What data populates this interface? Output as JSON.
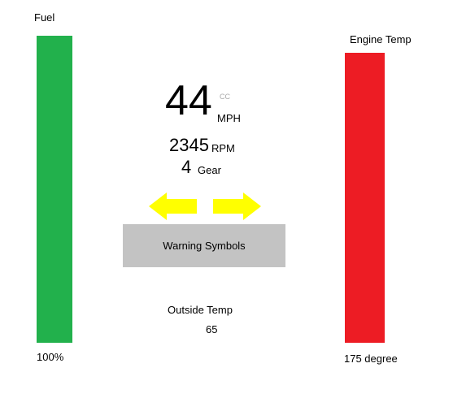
{
  "colors": {
    "fuel_bar": "#22b14c",
    "engine_temp_bar": "#ed1c24",
    "turn_signal": "#ffff00",
    "warning_panel": "#c3c3c3",
    "cruise_label": "#a8a8a8"
  },
  "fuel": {
    "title": "Fuel",
    "value": "100%",
    "level_fraction": 1.0
  },
  "engine_temp": {
    "title": "Engine Temp",
    "value": "175 degree"
  },
  "speed": {
    "value": "44",
    "unit": "MPH",
    "cruise_label": "CC"
  },
  "rpm": {
    "value": "2345",
    "unit": "RPM"
  },
  "gear": {
    "value": "4",
    "label": "Gear"
  },
  "turn_signals": {
    "left_icon": "left-arrow-icon",
    "right_icon": "right-arrow-icon"
  },
  "warning": {
    "label": "Warning Symbols"
  },
  "outside_temp": {
    "label": "Outside Temp",
    "value": "65"
  }
}
